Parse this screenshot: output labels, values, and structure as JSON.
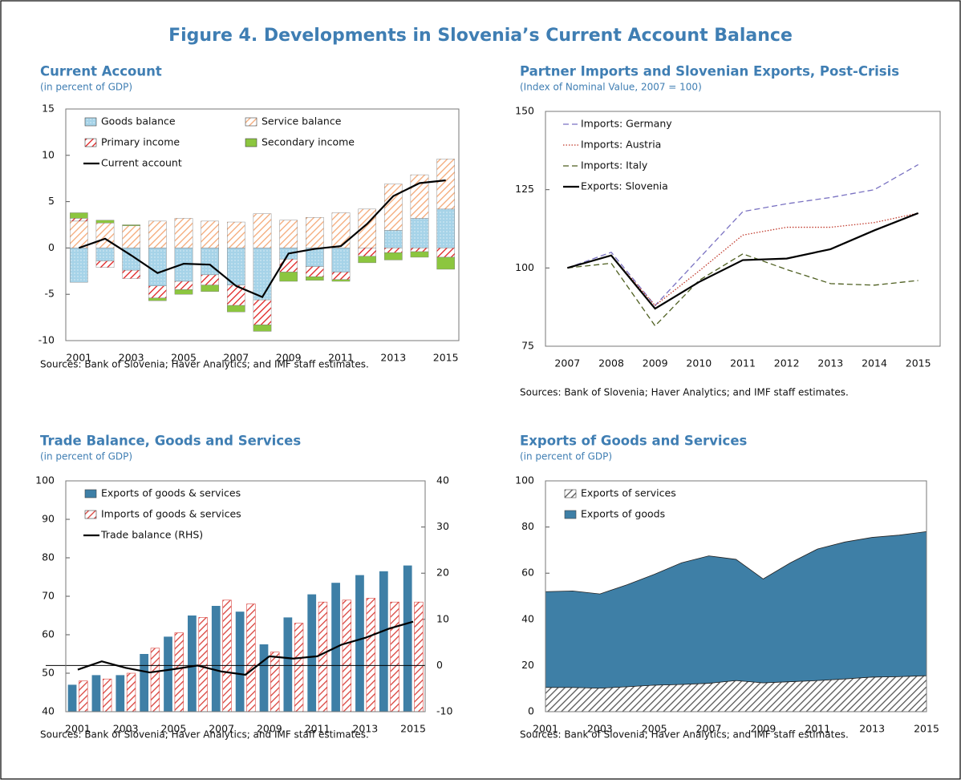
{
  "title": "Figure 4. Developments in Slovenia’s Current Account Balance",
  "chart_data": [
    {
      "type": "combo",
      "stacked": true,
      "title": "Current Account",
      "subtitle": "(in percent of GDP)",
      "source": "Sources: Bank of Slovenia; Haver Analytics; and IMF staff estimates.",
      "categories": [
        "2001",
        null,
        "2003",
        null,
        "2005",
        null,
        "2007",
        null,
        "2009",
        null,
        "2011",
        null,
        "2013",
        null,
        "2015"
      ],
      "ylim": [
        -10,
        15
      ],
      "yticks": [
        -10,
        -5,
        0,
        5,
        10,
        15
      ],
      "legend": "upper left",
      "legend_columns": 2,
      "series": [
        {
          "name": "Goods balance",
          "kind": "bar",
          "fill": "dots",
          "color": "#a6d3e8",
          "values": [
            -3.7,
            -1.4,
            -2.4,
            -4.1,
            -3.6,
            -2.9,
            -4.0,
            -5.6,
            -1.2,
            -2.0,
            -2.6,
            0,
            1.9,
            3.2,
            4.2
          ]
        },
        {
          "name": "Service balance",
          "kind": "bar",
          "fill": "hatch",
          "color": "#f4a977",
          "values": [
            2.9,
            2.7,
            2.4,
            2.9,
            3.2,
            2.9,
            2.8,
            3.7,
            3.0,
            3.3,
            3.8,
            4.2,
            5.0,
            4.7,
            5.4
          ]
        },
        {
          "name": "Primary income",
          "kind": "bar",
          "fill": "hatch",
          "color": "#e02020",
          "values": [
            0.3,
            -0.7,
            -0.9,
            -1.3,
            -0.9,
            -1.1,
            -2.2,
            -2.7,
            -1.4,
            -1.1,
            -0.8,
            -0.9,
            -0.5,
            -0.4,
            -1.0
          ]
        },
        {
          "name": "Secondary income",
          "kind": "bar",
          "fill": "solid",
          "color": "#8cc63f",
          "values": [
            0.6,
            0.3,
            0.1,
            -0.3,
            -0.5,
            -0.7,
            -0.7,
            -0.7,
            -1.0,
            -0.4,
            -0.2,
            -0.7,
            -0.8,
            -0.6,
            -1.3
          ]
        },
        {
          "name": "Current account",
          "kind": "line",
          "dash": "solid",
          "color": "#000000",
          "values": [
            0,
            1.0,
            -0.8,
            -2.7,
            -1.7,
            -1.8,
            -4.1,
            -5.3,
            -0.6,
            -0.1,
            0.2,
            2.6,
            5.6,
            7.0,
            7.3
          ]
        }
      ]
    },
    {
      "type": "line",
      "title": "Partner Imports and Slovenian Exports, Post-Crisis",
      "subtitle": "(Index of Nominal Value, 2007 = 100)",
      "source": "Sources: Bank of Slovenia; Haver Analytics; and IMF staff estimates.",
      "categories": [
        "2007",
        "2008",
        "2009",
        "2010",
        "2011",
        "2012",
        "2013",
        "2014",
        "2015"
      ],
      "ylim": [
        75,
        150
      ],
      "yticks": [
        75,
        100,
        125,
        150
      ],
      "legend": "upper left",
      "series": [
        {
          "name": "Imports: Germany",
          "kind": "line",
          "dash": "dashed",
          "color": "#7a72c2",
          "values": [
            100,
            105,
            88,
            103,
            118,
            120.5,
            122.5,
            125,
            133
          ]
        },
        {
          "name": "Imports: Austria",
          "kind": "line",
          "dash": "dotted",
          "color": "#c0392b",
          "values": [
            100,
            104,
            88,
            99,
            110.5,
            113,
            113,
            114.5,
            117.5
          ]
        },
        {
          "name": "Imports: Italy",
          "kind": "line",
          "dash": "dashed",
          "color": "#4d5e1f",
          "values": [
            100,
            101.5,
            81.5,
            96,
            104.5,
            99.5,
            95,
            94.5,
            96
          ]
        },
        {
          "name": "Exports: Slovenia",
          "kind": "line",
          "dash": "solid",
          "color": "#000000",
          "values": [
            100,
            104,
            87,
            95.5,
            102.5,
            103,
            106,
            112,
            117.5
          ]
        }
      ]
    },
    {
      "type": "combo",
      "stacked": false,
      "title": "Trade Balance, Goods and Services",
      "subtitle": "(in percent of GDP)",
      "source": "Sources: Bank of Slovenia; Haver Analytics; and IMF staff estimates.",
      "categories": [
        "2001",
        null,
        "2003",
        null,
        "2005",
        null,
        "2007",
        null,
        "2009",
        null,
        "2011",
        null,
        "2013",
        null,
        "2015"
      ],
      "ylim": [
        40,
        100
      ],
      "yticks": [
        40,
        50,
        60,
        70,
        80,
        90,
        100
      ],
      "y2lim": [
        -10,
        40
      ],
      "y2ticks": [
        -10,
        0,
        10,
        20,
        30,
        40
      ],
      "legend": "upper left",
      "series": [
        {
          "name": "Exports of goods & services",
          "kind": "bar",
          "fill": "solid",
          "color": "#3e7fa6",
          "values": [
            47,
            49.5,
            49.5,
            55,
            59.5,
            65,
            67.5,
            66,
            57.5,
            64.5,
            70.5,
            73.5,
            75.5,
            76.5,
            78
          ]
        },
        {
          "name": "Imports of goods & services",
          "kind": "bar",
          "fill": "hatch",
          "color": "#d9423c",
          "values": [
            48,
            48.5,
            50,
            56.5,
            60.5,
            64.5,
            69,
            68,
            55.5,
            63,
            68.5,
            69,
            69.5,
            68.5,
            68.5
          ]
        },
        {
          "name": "Trade balance (RHS)",
          "kind": "line",
          "axis": "y2",
          "dash": "solid",
          "color": "#000000",
          "values": [
            -0.9,
            0.9,
            -0.5,
            -1.5,
            -0.8,
            0,
            -1.3,
            -2.0,
            2.0,
            1.5,
            2.0,
            4.5,
            6.0,
            8.0,
            9.5
          ]
        }
      ]
    },
    {
      "type": "area",
      "title": "Exports of Goods and Services",
      "subtitle": "(in percent of GDP)",
      "source": "Sources: Bank of Slovenia; Haver Analytics; and IMF staff estimates.",
      "categories": [
        "2001",
        null,
        "2003",
        null,
        "2005",
        null,
        "2007",
        null,
        "2009",
        null,
        "2011",
        null,
        "2013",
        null,
        "2015"
      ],
      "ylim": [
        0,
        100
      ],
      "yticks": [
        0,
        20,
        40,
        60,
        80,
        100
      ],
      "legend": "upper left",
      "series": [
        {
          "name": "Exports of services",
          "kind": "area",
          "fill": "hatch",
          "color": "#555555",
          "values": [
            10.5,
            10.5,
            10.2,
            10.8,
            11.5,
            11.8,
            12.3,
            13.5,
            12.5,
            13.0,
            13.5,
            14.2,
            15.0,
            15.2,
            15.6
          ]
        },
        {
          "name": "Exports of goods",
          "kind": "area",
          "fill": "solid",
          "color": "#3e7fa6",
          "values": [
            41.5,
            41.8,
            40.8,
            44.2,
            48.0,
            52.7,
            55.2,
            52.5,
            45.0,
            51.5,
            57.0,
            59.3,
            60.5,
            61.3,
            62.4
          ]
        }
      ]
    }
  ]
}
